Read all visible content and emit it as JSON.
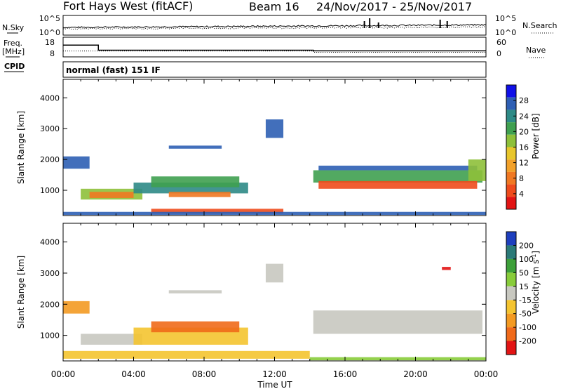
{
  "chart_data": {
    "type": "heatmap",
    "header": {
      "station": "Fort Hays West (fitACF)",
      "beam": "Beam 16",
      "date_range": "24/Nov/2017 - 25/Nov/2017"
    },
    "time_axis": {
      "label": "Time UT",
      "range_hours": [
        0,
        24
      ],
      "ticks": [
        "00:00",
        "04:00",
        "08:00",
        "12:00",
        "16:00",
        "20:00",
        "00:00"
      ]
    },
    "noise_panel": {
      "left_label": "N.Sky",
      "right_label": "N.Search",
      "left_ticks": [
        "10^5",
        "10^0"
      ],
      "right_ticks": [
        "10^5",
        "10^0"
      ]
    },
    "freq_panel": {
      "left_label_1": "Freq.",
      "left_label_2": "[MHz]",
      "right_label": "Nave",
      "left_ticks": [
        "18",
        "8"
      ],
      "right_ticks": [
        "60",
        "0"
      ],
      "freq_mhz": [
        {
          "t": 0,
          "v": 14.5
        },
        {
          "t": 2.0,
          "v": 10.5
        },
        {
          "t": 14.2,
          "v": 10.0
        },
        {
          "t": 24,
          "v": 10.0
        }
      ],
      "nave": [
        {
          "t": 0,
          "v": 20
        },
        {
          "t": 14.2,
          "v": 15
        },
        {
          "t": 24,
          "v": 15
        }
      ]
    },
    "cpid": {
      "label": "CPID",
      "mode": "normal (fast) 151 IF"
    },
    "power_panel": {
      "ylabel": "Slant Range [km]",
      "yticks": [
        1000,
        2000,
        3000,
        4000
      ],
      "ylim": [
        180,
        4600
      ],
      "colorbar_label": "Power [dB]",
      "colorbar_ticks": [
        "4",
        "8",
        "12",
        "16",
        "20",
        "24",
        "28"
      ],
      "colorbar_colors": [
        "#1010e8",
        "#2e5fb4",
        "#2d8a86",
        "#3fa050",
        "#8ec03a",
        "#e8c62c",
        "#f2a12a",
        "#f07822",
        "#ee4b1c",
        "#e21414"
      ],
      "bands": [
        {
          "t0": 0.0,
          "t1": 1.5,
          "r0": 1700,
          "r1": 2100,
          "color": "#2e5fb4"
        },
        {
          "t0": 1.0,
          "t1": 4.5,
          "r0": 700,
          "r1": 1050,
          "color": "#8ec03a"
        },
        {
          "t0": 1.5,
          "t1": 4.0,
          "r0": 750,
          "r1": 950,
          "color": "#f07822"
        },
        {
          "t0": 4.0,
          "t1": 10.5,
          "r0": 900,
          "r1": 1250,
          "color": "#2d8a86"
        },
        {
          "t0": 5.0,
          "t1": 10.0,
          "r0": 1100,
          "r1": 1450,
          "color": "#3fa050"
        },
        {
          "t0": 6.0,
          "t1": 9.5,
          "r0": 780,
          "r1": 950,
          "color": "#f07822"
        },
        {
          "t0": 5.0,
          "t1": 12.5,
          "r0": 250,
          "r1": 400,
          "color": "#ee4b1c"
        },
        {
          "t0": 0.0,
          "t1": 24.0,
          "r0": 200,
          "r1": 300,
          "color": "#2e5fb4"
        },
        {
          "t0": 14.2,
          "t1": 23.8,
          "r0": 1250,
          "r1": 1650,
          "color": "#3fa050"
        },
        {
          "t0": 14.5,
          "t1": 23.5,
          "r0": 1050,
          "r1": 1300,
          "color": "#ee4b1c"
        },
        {
          "t0": 14.5,
          "t1": 23.5,
          "r0": 1650,
          "r1": 1800,
          "color": "#2e5fb4"
        },
        {
          "t0": 6.0,
          "t1": 9.0,
          "r0": 2350,
          "r1": 2450,
          "color": "#2e5fb4"
        },
        {
          "t0": 11.5,
          "t1": 12.5,
          "r0": 2700,
          "r1": 3300,
          "color": "#2e5fb4"
        },
        {
          "t0": 23.0,
          "t1": 24.0,
          "r0": 1300,
          "r1": 2000,
          "color": "#8ec03a"
        }
      ]
    },
    "velocity_panel": {
      "ylabel": "Slant Range [km]",
      "yticks": [
        1000,
        2000,
        3000,
        4000
      ],
      "ylim": [
        180,
        4600
      ],
      "colorbar_label_1": "Velocity",
      "colorbar_label_2": "[m s",
      "colorbar_label_sup": "-1",
      "colorbar_label_3": "]",
      "colorbar_ticks": [
        "200",
        "100",
        "50",
        "15",
        "-15",
        "-50",
        "-100",
        "-200"
      ],
      "colorbar_colors": [
        "#1e3fbe",
        "#2b7a78",
        "#3da03a",
        "#88cc3a",
        "#c8c8c0",
        "#f4c430",
        "#f39a22",
        "#f06a1a",
        "#e21414"
      ],
      "bands": [
        {
          "t0": 0.0,
          "t1": 1.5,
          "r0": 1700,
          "r1": 2100,
          "color": "#f39a22"
        },
        {
          "t0": 1.0,
          "t1": 4.5,
          "r0": 700,
          "r1": 1050,
          "color": "#c8c8c0"
        },
        {
          "t0": 4.0,
          "t1": 10.5,
          "r0": 700,
          "r1": 1250,
          "color": "#f4c430"
        },
        {
          "t0": 5.0,
          "t1": 10.0,
          "r0": 1100,
          "r1": 1450,
          "color": "#f06a1a"
        },
        {
          "t0": 0.0,
          "t1": 14.0,
          "r0": 250,
          "r1": 500,
          "color": "#f4c430"
        },
        {
          "t0": 14.2,
          "t1": 23.8,
          "r0": 1050,
          "r1": 1800,
          "color": "#c8c8c0"
        },
        {
          "t0": 14.0,
          "t1": 24.0,
          "r0": 200,
          "r1": 300,
          "color": "#88cc3a"
        },
        {
          "t0": 6.0,
          "t1": 9.0,
          "r0": 2350,
          "r1": 2450,
          "color": "#c8c8c0"
        },
        {
          "t0": 11.5,
          "t1": 12.5,
          "r0": 2700,
          "r1": 3300,
          "color": "#c8c8c0"
        },
        {
          "t0": 21.5,
          "t1": 22.0,
          "r0": 3100,
          "r1": 3200,
          "color": "#e21414"
        }
      ]
    }
  }
}
